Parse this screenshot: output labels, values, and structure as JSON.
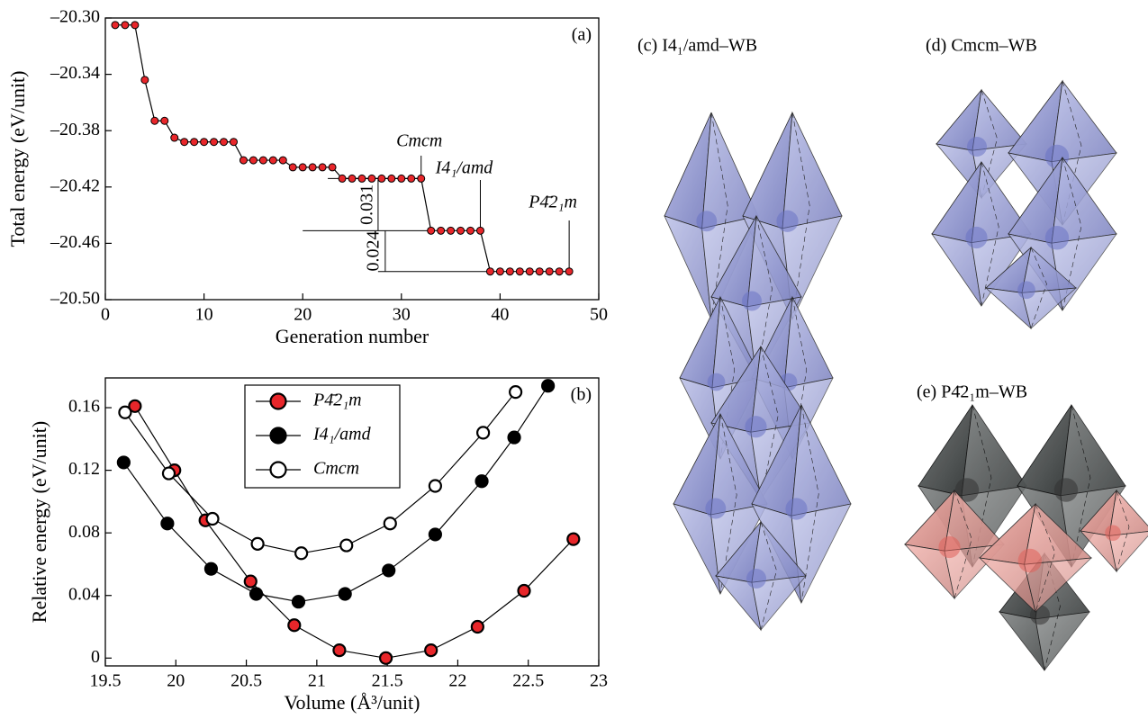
{
  "chart_data": [
    {
      "type": "line",
      "panel_label": "(a)",
      "xlabel": "Generation number",
      "ylabel": "Total energy (eV/unit)",
      "x": [
        1,
        2,
        3,
        4,
        5,
        6,
        7,
        8,
        9,
        10,
        11,
        12,
        13,
        14,
        15,
        16,
        17,
        18,
        19,
        20,
        21,
        22,
        23,
        24,
        25,
        26,
        27,
        28,
        29,
        30,
        31,
        32,
        33,
        34,
        35,
        36,
        37,
        38,
        39,
        40,
        41,
        42,
        43,
        44,
        45,
        46,
        47
      ],
      "values": [
        -20.305,
        -20.305,
        -20.305,
        -20.344,
        -20.373,
        -20.373,
        -20.385,
        -20.388,
        -20.388,
        -20.388,
        -20.388,
        -20.388,
        -20.388,
        -20.401,
        -20.401,
        -20.401,
        -20.401,
        -20.401,
        -20.406,
        -20.406,
        -20.406,
        -20.406,
        -20.406,
        -20.414,
        -20.414,
        -20.414,
        -20.414,
        -20.414,
        -20.414,
        -20.414,
        -20.414,
        -20.414,
        -20.451,
        -20.451,
        -20.451,
        -20.451,
        -20.451,
        -20.451,
        -20.48,
        -20.48,
        -20.48,
        -20.48,
        -20.48,
        -20.48,
        -20.48,
        -20.48,
        -20.48
      ],
      "color": "#e8262a",
      "xlim": [
        0,
        50
      ],
      "xticks": [
        0,
        10,
        20,
        30,
        40,
        50
      ],
      "ylim": [
        -20.5,
        -20.3
      ],
      "yticks": [
        {
          "value": -20.5,
          "label": "–20.50"
        },
        {
          "value": -20.46,
          "label": "–20.46"
        },
        {
          "value": -20.42,
          "label": "–20.42"
        },
        {
          "value": -20.38,
          "label": "–20.38"
        },
        {
          "value": -20.34,
          "label": "–20.34"
        },
        {
          "value": -20.3,
          "label": "–20.30"
        }
      ],
      "annotations": [
        "Cmcm",
        "I4₁/amd",
        "P4̄2₁m",
        "0.031",
        "0.024"
      ]
    },
    {
      "type": "scatter",
      "panel_label": "(b)",
      "xlabel": "Volume (Å³/unit)",
      "ylabel": "Relative energy (eV/unit)",
      "xlim": [
        19.5,
        23
      ],
      "xticks": [
        19.5,
        20,
        20.5,
        21,
        21.5,
        22,
        22.5,
        23
      ],
      "ylim": [
        -0.005,
        0.179
      ],
      "yticks": [
        0,
        0.04,
        0.08,
        0.12,
        0.16
      ],
      "series": [
        {
          "name": "P4̄2₁m",
          "color": "#e8262a",
          "x": [
            19.71,
            19.99,
            20.21,
            20.53,
            20.84,
            21.16,
            21.49,
            21.81,
            22.14,
            22.47,
            22.82
          ],
          "values": [
            0.161,
            0.12,
            0.088,
            0.049,
            0.021,
            0.005,
            0,
            0.005,
            0.02,
            0.043,
            0.076
          ]
        },
        {
          "name": "I4₁/amd",
          "color": "#000000",
          "x": [
            19.63,
            19.94,
            20.25,
            20.57,
            20.87,
            21.2,
            21.51,
            21.84,
            22.17,
            22.4,
            22.64
          ],
          "values": [
            0.125,
            0.086,
            0.057,
            0.041,
            0.036,
            0.041,
            0.056,
            0.079,
            0.113,
            0.141,
            0.174
          ]
        },
        {
          "name": "Cmcm",
          "color": "#ffffff",
          "x": [
            19.64,
            19.95,
            20.26,
            20.58,
            20.89,
            21.21,
            21.52,
            21.84,
            22.18,
            22.41
          ],
          "values": [
            0.157,
            0.118,
            0.089,
            0.073,
            0.067,
            0.072,
            0.086,
            0.11,
            0.144,
            0.17
          ]
        }
      ]
    }
  ],
  "panels": [
    {
      "label": "(c) I4₁/amd–WB"
    },
    {
      "label": "(d) Cmcm–WB"
    },
    {
      "label": "(e) P4̄2₁m–WB"
    }
  ]
}
